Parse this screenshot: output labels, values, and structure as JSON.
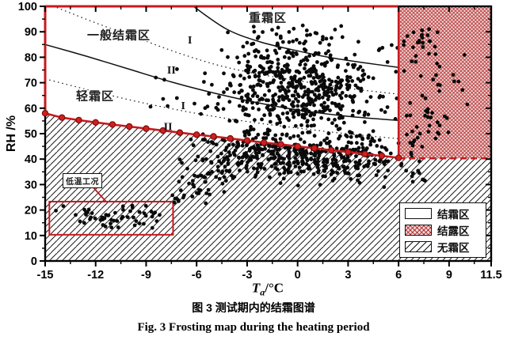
{
  "captions": {
    "zh": "图 3 测试期内的结霜图谱",
    "en": "Fig. 3 Frosting map during the heating period"
  },
  "legend": {
    "items": [
      {
        "label": "结霜区",
        "pattern": "blank"
      },
      {
        "label": "结露区",
        "pattern": "red-crosshatch"
      },
      {
        "label": "无霜区",
        "pattern": "diagonal-hatch"
      }
    ]
  },
  "colors": {
    "accent_red": "#c8191d",
    "marker_fill": "#d21f1f",
    "marker_stroke": "#7e0d0d",
    "dot_black": "#0a0a0a",
    "dew_bg": "#f2dada",
    "hatch_line": "#1a1a1a"
  },
  "chart_data": {
    "type": "scatter",
    "xlabel_t": "T",
    "xlabel_sub": "a",
    "xlabel_unit": "/°C",
    "ylabel": "RH /%",
    "xlim": [
      -15,
      11.5
    ],
    "ylim": [
      0,
      100
    ],
    "x_ticks": [
      {
        "v": -15,
        "label": "-15"
      },
      {
        "v": -12,
        "label": "-12"
      },
      {
        "v": -9,
        "label": "-9"
      },
      {
        "v": -6,
        "label": "-6"
      },
      {
        "v": -3,
        "label": "-3"
      },
      {
        "v": 0,
        "label": "0"
      },
      {
        "v": 3,
        "label": "3"
      },
      {
        "v": 6,
        "label": "6"
      },
      {
        "v": 9,
        "label": "9"
      },
      {
        "v": 11.5,
        "label": "11.5"
      }
    ],
    "x_minor_step": 1.5,
    "y_ticks": [
      {
        "v": 0,
        "label": "0"
      },
      {
        "v": 10,
        "label": "10"
      },
      {
        "v": 20,
        "label": "20"
      },
      {
        "v": 30,
        "label": "30"
      },
      {
        "v": 40,
        "label": "40"
      },
      {
        "v": 50,
        "label": "50"
      },
      {
        "v": 60,
        "label": "60"
      },
      {
        "v": 70,
        "label": "70"
      },
      {
        "v": 80,
        "label": "80"
      },
      {
        "v": 90,
        "label": "90"
      },
      {
        "v": 100,
        "label": "100"
      }
    ],
    "y_minor_step": 5,
    "region_labels": [
      {
        "text": "一般结霜区",
        "ta": -10.6,
        "rh": 89
      },
      {
        "text": "轻霜区",
        "ta": -12.0,
        "rh": 64.8
      },
      {
        "text": "重霜区",
        "ta": -1.8,
        "rh": 95.5
      }
    ],
    "band_labels": [
      {
        "text": "I",
        "ta": -6.4,
        "rh": 87
      },
      {
        "text": "II",
        "ta": -7.5,
        "rh": 75.2
      },
      {
        "text": "I",
        "ta": -6.8,
        "rh": 61.2
      },
      {
        "text": "II",
        "ta": -7.7,
        "rh": 53
      }
    ],
    "boundary_curves": [
      {
        "name": "heavy-frost-boundary",
        "style": "solid",
        "points": [
          [
            -6.2,
            100
          ],
          [
            -4.2,
            91
          ],
          [
            -2.2,
            86
          ],
          [
            0,
            82.5
          ],
          [
            2,
            79.8
          ],
          [
            4,
            77.8
          ],
          [
            6,
            76
          ]
        ]
      },
      {
        "name": "upper-dotted-boundary",
        "style": "dotted",
        "points": [
          [
            -14.3,
            99.5
          ],
          [
            -12,
            93.5
          ],
          [
            -9.5,
            87.5
          ],
          [
            -7,
            81.5
          ],
          [
            -4.5,
            76.5
          ],
          [
            -2,
            73
          ],
          [
            0.5,
            70.3
          ],
          [
            3,
            67.8
          ],
          [
            6,
            65.5
          ]
        ]
      },
      {
        "name": "general-frost-boundary",
        "style": "solid",
        "points": [
          [
            -15,
            85
          ],
          [
            -12.5,
            80.3
          ],
          [
            -10,
            75.3
          ],
          [
            -7.5,
            70.3
          ],
          [
            -5,
            66
          ],
          [
            -2.5,
            62.3
          ],
          [
            0,
            59.3
          ],
          [
            3,
            56.8
          ],
          [
            6,
            55.2
          ]
        ]
      },
      {
        "name": "lower-dotted-boundary",
        "style": "dotted",
        "points": [
          [
            -15,
            71.5
          ],
          [
            -12.5,
            67.3
          ],
          [
            -10,
            63.3
          ],
          [
            -7.5,
            59.8
          ],
          [
            -5,
            56.8
          ],
          [
            -2.5,
            54.3
          ],
          [
            0,
            52.2
          ],
          [
            3,
            49.9
          ],
          [
            6,
            48
          ]
        ]
      }
    ],
    "frost_line": {
      "points": [
        [
          -15,
          58
        ],
        [
          -14,
          56.3
        ],
        [
          -13,
          55.3
        ],
        [
          -12,
          54.4
        ],
        [
          -11,
          53.6
        ],
        [
          -10,
          52.8
        ],
        [
          -9,
          52
        ],
        [
          -8,
          51.2
        ],
        [
          -7,
          50.4
        ],
        [
          -6,
          49.6
        ],
        [
          -5,
          48.9
        ],
        [
          -4,
          48.1
        ],
        [
          -3,
          47.3
        ],
        [
          -2,
          46.5
        ],
        [
          -1,
          45.8
        ],
        [
          0,
          45
        ],
        [
          1,
          44.3
        ],
        [
          2,
          43.5
        ],
        [
          3,
          42.8
        ],
        [
          4,
          42
        ],
        [
          5,
          41.3
        ],
        [
          6,
          40.5
        ]
      ]
    },
    "dew_region": {
      "ta": [
        6,
        11.5
      ],
      "rh": [
        40.3,
        100
      ]
    },
    "annotations": {
      "low_temp": {
        "label": "低温工况",
        "rect_ta": [
          -14.75,
          -7.4
        ],
        "rect_rh": [
          10.3,
          23.3
        ],
        "label_ta": -12.8,
        "label_rh": 32.3
      }
    },
    "scatter_clusters": [
      {
        "name": "main-cloud",
        "n": 430,
        "dist": "gauss",
        "cx": -0.6,
        "cy": 71,
        "sx": 2.3,
        "sy": 9.5,
        "slope": 0,
        "clip": [
          -5.6,
          4.6,
          46,
          94
        ]
      },
      {
        "name": "main-cloud-lower",
        "n": 130,
        "dist": "gauss",
        "cx": 1.3,
        "cy": 62,
        "sx": 1.7,
        "sy": 7,
        "slope": 0,
        "clip": [
          -3,
          4.6,
          46,
          85
        ]
      },
      {
        "name": "band-under-line",
        "n": 360,
        "dist": "gauss",
        "cx": -0.2,
        "cy": 41,
        "sx": 2.7,
        "sy": 4.6,
        "slope": -0.6,
        "clip": [
          -6.6,
          6,
          28,
          53
        ]
      },
      {
        "name": "band-right",
        "n": 50,
        "dist": "gauss",
        "cx": 4.2,
        "cy": 44,
        "sx": 1.3,
        "sy": 4,
        "slope": 0,
        "clip": [
          2.5,
          6,
          33,
          52
        ]
      },
      {
        "name": "band-past-six",
        "n": 12,
        "dist": "uniform",
        "clip": [
          6.1,
          7.6,
          31,
          39.5
        ]
      },
      {
        "name": "low-temp-cluster",
        "n": 55,
        "dist": "gauss",
        "cx": -11,
        "cy": 17.5,
        "sx": 2.1,
        "sy": 2.7,
        "slope": 0,
        "clip": [
          -14.8,
          -7.7,
          11.5,
          22.8
        ]
      },
      {
        "name": "mid-left-rise",
        "n": 70,
        "dist": "gauss",
        "cx": -5.3,
        "cy": 31,
        "sx": 1.5,
        "sy": 4.8,
        "slope": 2.8,
        "clip": [
          -8.6,
          -2.4,
          22,
          43
        ]
      },
      {
        "name": "sparse-light-zone",
        "n": 14,
        "dist": "uniform",
        "clip": [
          -9,
          -3.5,
          56,
          78
        ]
      },
      {
        "name": "strip-before-dew",
        "n": 15,
        "dist": "uniform",
        "clip": [
          4.8,
          5.95,
          52,
          85
        ]
      },
      {
        "name": "dew-top",
        "n": 24,
        "dist": "gauss",
        "cx": 7.4,
        "cy": 86,
        "sx": 0.9,
        "sy": 3.5,
        "slope": 0,
        "clip": [
          6.3,
          9.2,
          78,
          94
        ]
      },
      {
        "name": "dew-mid",
        "n": 12,
        "dist": "gauss",
        "cx": 8.2,
        "cy": 72,
        "sx": 1.1,
        "sy": 3,
        "slope": 0,
        "clip": [
          6.3,
          10.3,
          66,
          78
        ]
      },
      {
        "name": "dew-low",
        "n": 20,
        "dist": "gauss",
        "cx": 7.5,
        "cy": 56,
        "sx": 0.9,
        "sy": 4,
        "slope": 0,
        "clip": [
          6.3,
          9.5,
          48,
          64
        ]
      },
      {
        "name": "dew-bottom",
        "n": 10,
        "dist": "gauss",
        "cx": 6.9,
        "cy": 45,
        "sx": 0.6,
        "sy": 2.5,
        "slope": 0,
        "clip": [
          6.2,
          8.2,
          40,
          50
        ]
      },
      {
        "name": "dew-sparse",
        "n": 10,
        "dist": "uniform",
        "clip": [
          6.3,
          10.2,
          42,
          92
        ]
      }
    ]
  }
}
